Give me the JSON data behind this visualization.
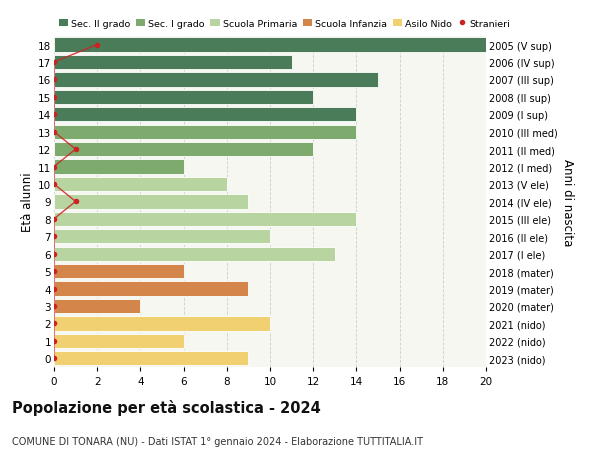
{
  "ages": [
    18,
    17,
    16,
    15,
    14,
    13,
    12,
    11,
    10,
    9,
    8,
    7,
    6,
    5,
    4,
    3,
    2,
    1,
    0
  ],
  "right_labels": [
    "2005 (V sup)",
    "2006 (IV sup)",
    "2007 (III sup)",
    "2008 (II sup)",
    "2009 (I sup)",
    "2010 (III med)",
    "2011 (II med)",
    "2012 (I med)",
    "2013 (V ele)",
    "2014 (IV ele)",
    "2015 (III ele)",
    "2016 (II ele)",
    "2017 (I ele)",
    "2018 (mater)",
    "2019 (mater)",
    "2020 (mater)",
    "2021 (nido)",
    "2022 (nido)",
    "2023 (nido)"
  ],
  "bar_values": [
    20,
    11,
    15,
    12,
    14,
    14,
    12,
    6,
    8,
    9,
    14,
    10,
    13,
    6,
    9,
    4,
    10,
    6,
    9
  ],
  "stranieri_values": [
    2,
    0,
    0,
    0,
    0,
    0,
    1,
    0,
    0,
    1,
    0,
    0,
    0,
    0,
    0,
    0,
    0,
    0,
    0
  ],
  "bar_colors": [
    "#4a7c59",
    "#4a7c59",
    "#4a7c59",
    "#4a7c59",
    "#4a7c59",
    "#7faa6e",
    "#7faa6e",
    "#7faa6e",
    "#b8d4a0",
    "#b8d4a0",
    "#b8d4a0",
    "#b8d4a0",
    "#b8d4a0",
    "#d4854a",
    "#d4854a",
    "#d4854a",
    "#f0d070",
    "#f0d070",
    "#f0d070"
  ],
  "legend_labels": [
    "Sec. II grado",
    "Sec. I grado",
    "Scuola Primaria",
    "Scuola Infanzia",
    "Asilo Nido",
    "Stranieri"
  ],
  "legend_colors": [
    "#4a7c59",
    "#7faa6e",
    "#b8d4a0",
    "#d4854a",
    "#f0d070",
    "#cc2222"
  ],
  "stranieri_color": "#cc2222",
  "title": "Popolazione per età scolastica - 2024",
  "subtitle": "COMUNE DI TONARA (NU) - Dati ISTAT 1° gennaio 2024 - Elaborazione TUTTITALIA.IT",
  "ylabel": "Età alunni",
  "right_ylabel": "Anni di nascita",
  "xlim": [
    0,
    20
  ],
  "xticks": [
    0,
    2,
    4,
    6,
    8,
    10,
    12,
    14,
    16,
    18,
    20
  ],
  "background_color": "#ffffff",
  "plot_bg_color": "#f7f7f2",
  "grid_color": "#cccccc",
  "bar_height": 0.82
}
